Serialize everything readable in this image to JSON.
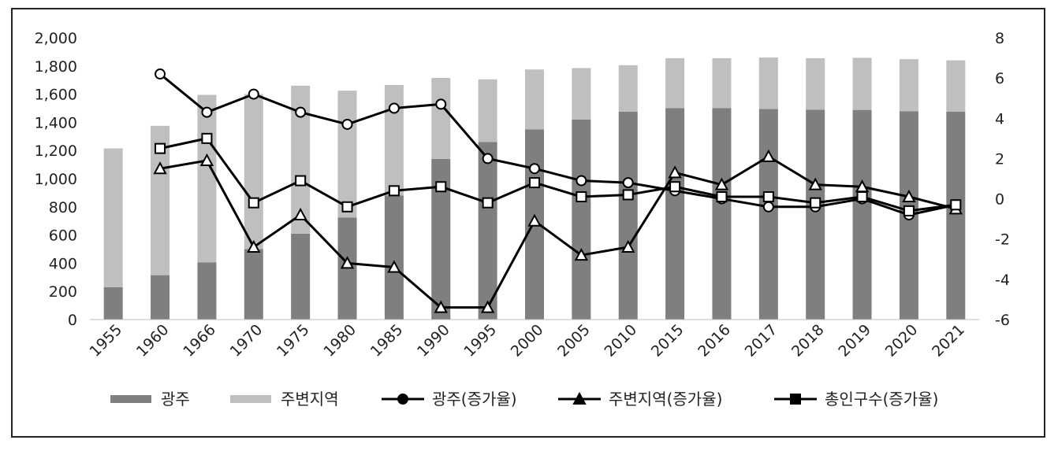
{
  "chart_data": {
    "type": "bar",
    "categories": [
      "1955",
      "1960",
      "1966",
      "1970",
      "1975",
      "1980",
      "1985",
      "1990",
      "1995",
      "2000",
      "2005",
      "2010",
      "2015",
      "2016",
      "2017",
      "2018",
      "2019",
      "2020",
      "2021"
    ],
    "stacked": true,
    "series": [
      {
        "name": "광주",
        "type": "bar",
        "axis": "left",
        "color": "#7f7f7f",
        "values": [
          230,
          315,
          405,
          500,
          610,
          725,
          880,
          1140,
          1260,
          1350,
          1420,
          1475,
          1500,
          1500,
          1495,
          1490,
          1488,
          1478,
          1475
        ]
      },
      {
        "name": "주변지역",
        "type": "bar",
        "axis": "left",
        "color": "#bfbfbf",
        "values": [
          985,
          1060,
          1190,
          1100,
          1050,
          900,
          785,
          575,
          445,
          425,
          365,
          330,
          355,
          355,
          365,
          365,
          370,
          370,
          365
        ]
      },
      {
        "name": "광주(증가율)",
        "type": "line",
        "axis": "right",
        "marker": "circle",
        "color": "#000000",
        "values": [
          null,
          6.2,
          4.3,
          5.2,
          4.3,
          3.7,
          4.5,
          4.7,
          2.0,
          1.5,
          0.9,
          0.8,
          0.4,
          0.0,
          -0.4,
          -0.4,
          0.0,
          -0.8,
          -0.3
        ]
      },
      {
        "name": "주변지역(증가율)",
        "type": "line",
        "axis": "right",
        "marker": "triangle",
        "color": "#000000",
        "values": [
          null,
          1.5,
          1.9,
          -2.4,
          -0.8,
          -3.2,
          -3.4,
          -5.4,
          -5.4,
          -1.1,
          -2.8,
          -2.4,
          1.3,
          0.7,
          2.1,
          0.7,
          0.6,
          0.1,
          -0.5
        ]
      },
      {
        "name": "총인구수(증가율)",
        "type": "line",
        "axis": "right",
        "marker": "square",
        "color": "#000000",
        "values": [
          null,
          2.5,
          3.0,
          -0.2,
          0.9,
          -0.4,
          0.4,
          0.6,
          -0.2,
          0.8,
          0.1,
          0.2,
          0.6,
          0.1,
          0.1,
          -0.2,
          0.1,
          -0.6,
          -0.3
        ]
      }
    ],
    "y_left": {
      "ylim": [
        0,
        2000
      ],
      "ticks": [
        "0",
        "200",
        "400",
        "600",
        "800",
        "1,000",
        "1,200",
        "1,400",
        "1,600",
        "1,800",
        "2,000"
      ]
    },
    "y_right": {
      "ylim": [
        -6,
        8
      ],
      "ticks": [
        "-6",
        "-4",
        "-2",
        "0",
        "2",
        "4",
        "6",
        "8"
      ]
    },
    "legend_position": "bottom",
    "grid": false
  }
}
